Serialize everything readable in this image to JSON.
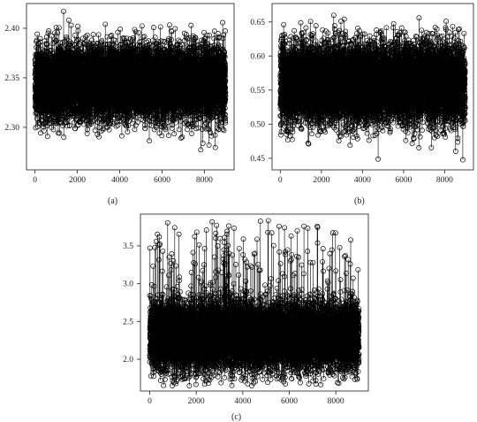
{
  "chart_data": [
    {
      "id": "a",
      "type": "scatter",
      "caption": "(a)",
      "xlim": [
        -400,
        9400
      ],
      "ylim": [
        2.257,
        2.425
      ],
      "xticks": [
        0,
        2000,
        4000,
        6000,
        8000
      ],
      "yticks": [
        2.3,
        2.35,
        2.4
      ],
      "ytick_labels": [
        "2.30",
        "2.35",
        "2.40"
      ],
      "n_points": 9000,
      "series": [
        {
          "center": 2.345,
          "spread": 0.018,
          "min": 2.265,
          "max": 2.418,
          "skew": 0
        }
      ],
      "grid": false,
      "legend": "none",
      "marker": "open-circle",
      "color": "#000000"
    },
    {
      "id": "b",
      "type": "scatter",
      "caption": "(b)",
      "xlim": [
        -400,
        9400
      ],
      "ylim": [
        0.433,
        0.677
      ],
      "xticks": [
        0,
        2000,
        4000,
        6000,
        8000
      ],
      "yticks": [
        0.45,
        0.5,
        0.55,
        0.6,
        0.65
      ],
      "ytick_labels": [
        "0.45",
        "0.50",
        "0.55",
        "0.60",
        "0.65"
      ],
      "n_points": 9000,
      "series": [
        {
          "center": 0.56,
          "spread": 0.028,
          "min": 0.445,
          "max": 0.672,
          "skew": 0
        }
      ],
      "grid": false,
      "legend": "none",
      "marker": "open-circle",
      "color": "#000000"
    },
    {
      "id": "c",
      "type": "scatter",
      "caption": "(c)",
      "xlim": [
        -400,
        9400
      ],
      "ylim": [
        1.58,
        3.92
      ],
      "xticks": [
        0,
        2000,
        4000,
        6000,
        8000
      ],
      "yticks": [
        2.0,
        2.5,
        3.0,
        3.5
      ],
      "ytick_labels": [
        "2.0",
        "2.5",
        "3.0",
        "3.5"
      ],
      "n_points": 9000,
      "series": [
        {
          "center": 2.3,
          "spread": 0.22,
          "min": 1.65,
          "max": 3.85,
          "skew": 1
        }
      ],
      "grid": false,
      "legend": "none",
      "marker": "open-circle",
      "color": "#000000"
    }
  ]
}
